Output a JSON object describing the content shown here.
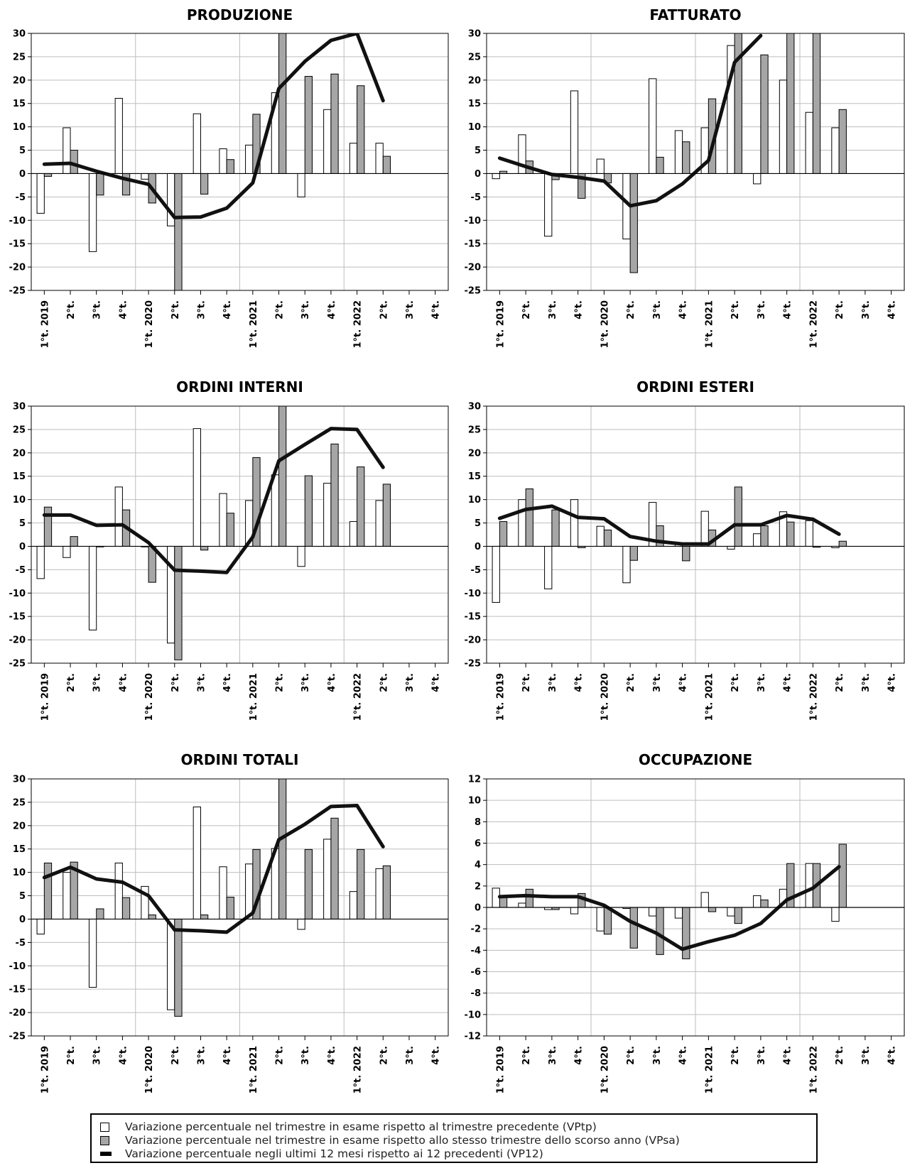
{
  "x_labels": [
    "1°t. 2019",
    "2°t.",
    "3°t.",
    "4°t.",
    "1°t. 2020",
    "2°t.",
    "3°t.",
    "4°t.",
    "1°t. 2021",
    "2°t.",
    "3°t.",
    "4°t.",
    "1°t. 2022",
    "2°t.",
    "3°t.",
    "4°t."
  ],
  "colors": {
    "vptp": "#ffffff",
    "vpsa": "#a6a6a6",
    "vp12": "#111111",
    "grid": "#bdbdbd"
  },
  "legend": {
    "vptp": "Variazione percentuale nel trimestre in esame rispetto al trimestre precedente (VPtp)",
    "vpsa": "Variazione percentuale nel trimestre in esame rispetto allo stesso trimestre dello scorso anno (VPsa)",
    "vp12": "Variazione percentuale negli ultimi 12 mesi rispetto ai 12 precedenti (VP12)"
  },
  "chart_data": [
    {
      "type": "bar",
      "title": "PRODUZIONE",
      "categories": [
        "1°t. 2019",
        "2°t.",
        "3°t.",
        "4°t.",
        "1°t. 2020",
        "2°t.",
        "3°t.",
        "4°t.",
        "1°t. 2021",
        "2°t.",
        "3°t.",
        "4°t.",
        "1°t. 2022",
        "2°t.",
        "3°t.",
        "4°t."
      ],
      "ylim": [
        -25,
        30
      ],
      "yticks": [
        30,
        25,
        20,
        15,
        10,
        5,
        0,
        -5,
        -10,
        -15,
        -20,
        -25
      ],
      "grid": true,
      "series": [
        {
          "key": "vptp",
          "values": [
            -8.5,
            9.8,
            -16.7,
            16.1,
            -1.2,
            -11.2,
            12.8,
            5.3,
            6.1,
            17.3,
            -5.0,
            13.7,
            6.5,
            6.5,
            null,
            null
          ]
        },
        {
          "key": "vpsa",
          "values": [
            -0.6,
            5.0,
            -4.6,
            -4.6,
            -6.3,
            -25,
            -4.4,
            3.0,
            12.7,
            30,
            20.8,
            21.3,
            18.8,
            3.7,
            null,
            null
          ]
        },
        {
          "key": "vp12",
          "values": [
            2.0,
            2.2,
            0.5,
            -1.0,
            -2.3,
            -9.4,
            -9.3,
            -7.4,
            -2.0,
            18.2,
            24.0,
            28.5,
            30,
            15.6,
            null,
            null
          ]
        }
      ]
    },
    {
      "type": "bar",
      "title": "FATTURATO",
      "categories": [
        "1°t. 2019",
        "2°t.",
        "3°t.",
        "4°t.",
        "1°t. 2020",
        "2°t.",
        "3°t.",
        "4°t.",
        "1°t. 2021",
        "2°t.",
        "3°t.",
        "4°t.",
        "1°t. 2022",
        "2°t.",
        "3°t.",
        "4°t."
      ],
      "ylim": [
        -25,
        30
      ],
      "yticks": [
        30,
        25,
        20,
        15,
        10,
        5,
        0,
        -5,
        -10,
        -15,
        -20,
        -25
      ],
      "grid": true,
      "series": [
        {
          "key": "vptp",
          "values": [
            -1.1,
            8.3,
            -13.4,
            17.7,
            3.1,
            -14.0,
            20.3,
            9.2,
            9.8,
            27.4,
            -2.2,
            20.0,
            13.1,
            9.8,
            null,
            null
          ]
        },
        {
          "key": "vpsa",
          "values": [
            0.5,
            2.7,
            -1.3,
            -5.3,
            -2.0,
            -21.2,
            3.5,
            6.8,
            16.0,
            30,
            25.4,
            30,
            30,
            13.7,
            null,
            null
          ]
        },
        {
          "key": "vp12",
          "values": [
            3.3,
            1.5,
            -0.2,
            -0.8,
            -1.6,
            -6.9,
            -5.8,
            -2.2,
            2.8,
            23.8,
            29.5,
            null,
            null,
            null,
            null,
            null
          ]
        }
      ]
    },
    {
      "type": "bar",
      "title": "ORDINI INTERNI",
      "categories": [
        "1°t. 2019",
        "2°t.",
        "3°t.",
        "4°t.",
        "1°t. 2020",
        "2°t.",
        "3°t.",
        "4°t.",
        "1°t. 2021",
        "2°t.",
        "3°t.",
        "4°t.",
        "1°t. 2022",
        "2°t.",
        "3°t.",
        "4°t."
      ],
      "ylim": [
        -25,
        30
      ],
      "yticks": [
        30,
        25,
        20,
        15,
        10,
        5,
        0,
        -5,
        -10,
        -15,
        -20,
        -25
      ],
      "grid": true,
      "series": [
        {
          "key": "vptp",
          "values": [
            -6.9,
            -2.4,
            -17.9,
            12.7,
            0.0,
            -20.7,
            25.2,
            11.3,
            9.8,
            15.3,
            -4.3,
            13.5,
            5.3,
            9.8,
            null,
            null
          ]
        },
        {
          "key": "vpsa",
          "values": [
            8.4,
            2.1,
            0.0,
            7.8,
            -7.7,
            -24.3,
            -0.8,
            7.1,
            19.0,
            30,
            15.1,
            21.9,
            17.0,
            13.3,
            null,
            null
          ]
        },
        {
          "key": "vp12",
          "values": [
            6.7,
            6.7,
            4.5,
            4.6,
            0.8,
            -5.1,
            -5.3,
            -5.6,
            2.0,
            18.3,
            21.8,
            25.2,
            25.0,
            16.9,
            null,
            null
          ]
        }
      ]
    },
    {
      "type": "bar",
      "title": "ORDINI ESTERI",
      "categories": [
        "1°t. 2019",
        "2°t.",
        "3°t.",
        "4°t.",
        "1°t. 2020",
        "2°t.",
        "3°t.",
        "4°t.",
        "1°t. 2021",
        "2°t.",
        "3°t.",
        "4°t.",
        "1°t. 2022",
        "2°t.",
        "3°t.",
        "4°t."
      ],
      "ylim": [
        -25,
        30
      ],
      "yticks": [
        30,
        25,
        20,
        15,
        10,
        5,
        0,
        -5,
        -10,
        -15,
        -20,
        -25
      ],
      "grid": true,
      "series": [
        {
          "key": "vptp",
          "values": [
            -12.0,
            10.0,
            -9.1,
            10.0,
            4.3,
            -7.8,
            9.4,
            0.4,
            7.5,
            -0.6,
            2.7,
            7.4,
            5.5,
            -0.3,
            null,
            null
          ]
        },
        {
          "key": "vpsa",
          "values": [
            5.3,
            12.3,
            7.8,
            -0.3,
            3.5,
            -3.0,
            4.4,
            -3.1,
            3.5,
            12.7,
            4.4,
            5.2,
            -0.2,
            1.1,
            null,
            null
          ]
        },
        {
          "key": "vp12",
          "values": [
            6.0,
            7.9,
            8.6,
            6.2,
            5.9,
            2.1,
            1.1,
            0.5,
            0.5,
            4.6,
            4.6,
            6.6,
            5.8,
            2.6,
            null,
            null
          ]
        }
      ]
    },
    {
      "type": "bar",
      "title": "ORDINI TOTALI",
      "categories": [
        "1°t. 2019",
        "2°t.",
        "3°t.",
        "4°t.",
        "1°t. 2020",
        "2°t.",
        "3°t.",
        "4°t.",
        "1°t. 2021",
        "2°t.",
        "3°t.",
        "4°t.",
        "1°t. 2022",
        "2°t.",
        "3°t.",
        "4°t."
      ],
      "ylim": [
        -25,
        30
      ],
      "yticks": [
        30,
        25,
        20,
        15,
        10,
        5,
        0,
        -5,
        -10,
        -15,
        -20,
        -25
      ],
      "grid": true,
      "series": [
        {
          "key": "vptp",
          "values": [
            -3.2,
            10.0,
            -14.6,
            12.0,
            7.0,
            -19.4,
            24.0,
            11.2,
            11.8,
            15.1,
            -2.2,
            17.1,
            5.9,
            10.8,
            null,
            null
          ]
        },
        {
          "key": "vpsa",
          "values": [
            12.0,
            12.2,
            2.2,
            4.6,
            0.9,
            -20.8,
            0.9,
            4.7,
            14.9,
            30,
            14.9,
            21.6,
            14.9,
            11.4,
            null,
            null
          ]
        },
        {
          "key": "vp12",
          "values": [
            8.9,
            11.1,
            8.6,
            7.9,
            5.0,
            -2.3,
            -2.5,
            -2.8,
            1.3,
            17.0,
            20.3,
            24.1,
            24.3,
            15.5,
            null,
            null
          ]
        }
      ]
    },
    {
      "type": "bar",
      "title": "OCCUPAZIONE",
      "categories": [
        "1°t. 2019",
        "2°t.",
        "3°t.",
        "4°t.",
        "1°t. 2020",
        "2°t.",
        "3°t.",
        "4°t.",
        "1°t. 2021",
        "2°t.",
        "3°t.",
        "4°t.",
        "1°t. 2022",
        "2°t.",
        "3°t.",
        "4°t."
      ],
      "ylim": [
        -12,
        12
      ],
      "yticks": [
        12,
        10,
        8,
        6,
        4,
        2,
        0,
        -2,
        -4,
        -6,
        -8,
        -10,
        -12
      ],
      "grid": true,
      "series": [
        {
          "key": "vptp",
          "values": [
            1.8,
            0.4,
            -0.2,
            -0.6,
            -2.2,
            -0.1,
            -0.8,
            -1.0,
            1.4,
            -0.8,
            1.1,
            1.7,
            4.1,
            -1.3,
            null,
            null
          ]
        },
        {
          "key": "vpsa",
          "values": [
            0.9,
            1.7,
            -0.2,
            1.3,
            -2.5,
            -3.8,
            -4.4,
            -4.8,
            -0.4,
            -1.5,
            0.7,
            4.1,
            4.1,
            5.9,
            null,
            null
          ]
        },
        {
          "key": "vp12",
          "values": [
            1.0,
            1.1,
            1.0,
            1.0,
            0.2,
            -1.3,
            -2.4,
            -3.9,
            -3.2,
            -2.6,
            -1.5,
            0.7,
            1.8,
            3.8,
            null,
            null
          ]
        }
      ]
    }
  ]
}
